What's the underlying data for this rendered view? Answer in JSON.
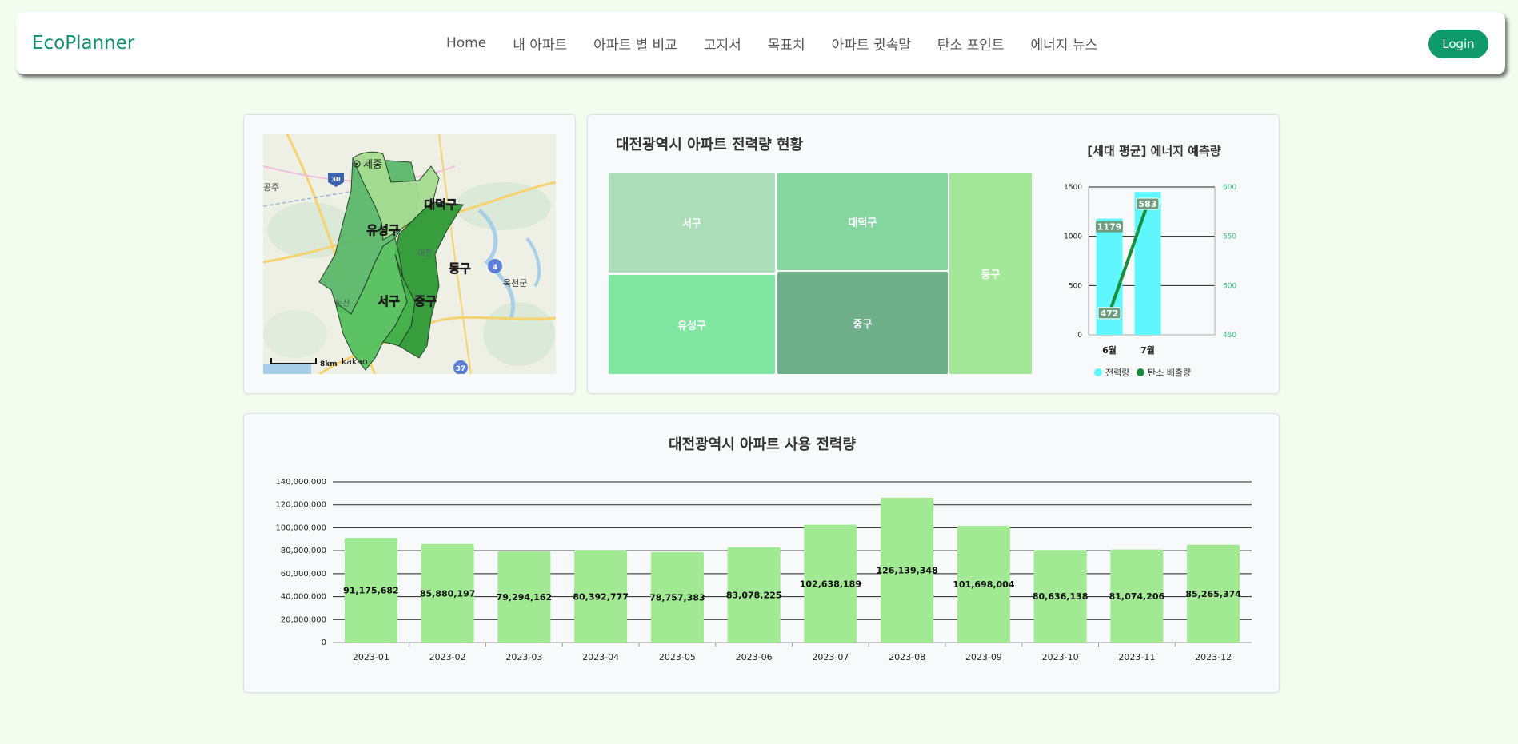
{
  "navbar": {
    "brand": "EcoPlanner",
    "menu": [
      "Home",
      "내 아파트",
      "아파트 별 비교",
      "고지서",
      "목표치",
      "아파트 귓속말",
      "탄소 포인트",
      "에너지 뉴스"
    ],
    "login_label": "Login"
  },
  "map": {
    "districts": [
      "유성구",
      "대덕구",
      "동구",
      "서구",
      "중구"
    ],
    "places": [
      "세종",
      "공주",
      "대전",
      "옥천군",
      "논산"
    ],
    "road_numbers": [
      "30",
      "4",
      "37"
    ],
    "scale_label": "8km",
    "attribution": "kakao"
  },
  "treemap": {
    "title": "대전광역시 아파트 전력량 현황",
    "tiles": [
      {
        "label": "서구",
        "color": "#acdfb9"
      },
      {
        "label": "대덕구",
        "color": "#86d6a2"
      },
      {
        "label": "동구",
        "color": "#a3e898"
      },
      {
        "label": "유성구",
        "color": "#80e7a2"
      },
      {
        "label": "중구",
        "color": "#6eae89"
      }
    ]
  },
  "combo_chart": {
    "title": "[세대 평균] 에너지 예측량",
    "categories": [
      "6월",
      "7월"
    ],
    "left_axis": {
      "ticks": [
        "0",
        "500",
        "1000",
        "1500"
      ],
      "min": 0,
      "max": 1500
    },
    "right_axis": {
      "ticks": [
        "450",
        "500",
        "550",
        "600"
      ],
      "min": 450,
      "max": 600
    },
    "series": [
      {
        "name": "전력량",
        "type": "bar",
        "values": [
          1179,
          1450
        ],
        "labels": [
          "1179",
          ""
        ],
        "color": "#5ff7fd"
      },
      {
        "name": "탄소 배출량",
        "type": "line",
        "values": [
          472,
          583
        ],
        "labels": [
          "472",
          "583"
        ],
        "color": "#198f3c"
      }
    ],
    "right_axis_color": "#2cc478"
  },
  "chart_data": {
    "type": "bar",
    "title": "대전광역시 아파트 사용 전력량",
    "categories": [
      "2023-01",
      "2023-02",
      "2023-03",
      "2023-04",
      "2023-05",
      "2023-06",
      "2023-07",
      "2023-08",
      "2023-09",
      "2023-10",
      "2023-11",
      "2023-12"
    ],
    "values": [
      91175682,
      85880197,
      79294162,
      80392777,
      78757383,
      83078225,
      102638189,
      126139348,
      101698004,
      80636138,
      81074206,
      85265374
    ],
    "value_labels": [
      "91,175,682",
      "85,880,197",
      "79,294,162",
      "80,392,777",
      "78,757,383",
      "83,078,225",
      "102,638,189",
      "126,139,348",
      "101,698,004",
      "80,636,138",
      "81,074,206",
      "85,265,374"
    ],
    "y_ticks": [
      "0",
      "20,000,000",
      "40,000,000",
      "60,000,000",
      "80,000,000",
      "100,000,000",
      "120,000,000",
      "140,000,000"
    ],
    "ylim": [
      0,
      140000000
    ],
    "bar_color": "#a2e994",
    "grid": true,
    "xlabel": "",
    "ylabel": ""
  }
}
